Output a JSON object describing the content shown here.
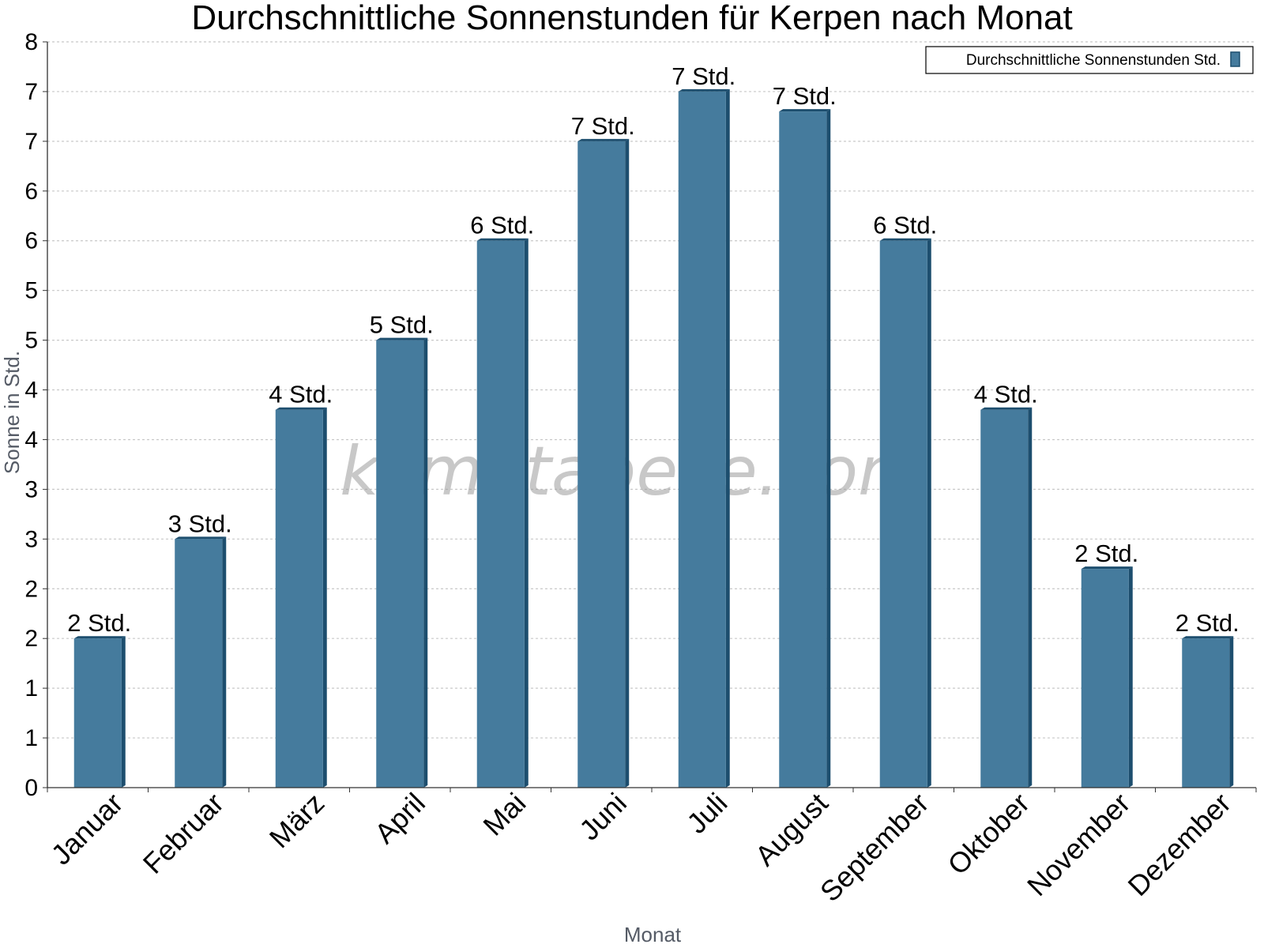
{
  "chart_data": {
    "type": "bar",
    "title": "Durchschnittliche Sonnenstunden für Kerpen nach Monat",
    "xlabel": "Monat",
    "ylabel": "Sonne in Std.",
    "categories": [
      "Januar",
      "Februar",
      "März",
      "April",
      "Mai",
      "Juni",
      "Juli",
      "August",
      "September",
      "Oktober",
      "November",
      "Dezember"
    ],
    "series": [
      {
        "name": "Durchschnittliche Sonnenstunden Std.",
        "values": [
          1.5,
          2.5,
          3.8,
          4.5,
          5.5,
          6.5,
          7.0,
          6.8,
          5.5,
          3.8,
          2.2,
          1.5
        ],
        "labels": [
          "2 Std.",
          "3 Std.",
          "4 Std.",
          "5 Std.",
          "6 Std.",
          "7 Std.",
          "7 Std.",
          "7 Std.",
          "6 Std.",
          "4 Std.",
          "2 Std.",
          "2 Std."
        ]
      }
    ],
    "ylim": [
      0,
      7.5
    ],
    "yticks": [
      0,
      0.5,
      1,
      1.5,
      2,
      2.5,
      3,
      3.5,
      4,
      4.5,
      5,
      5.5,
      6,
      6.5,
      7,
      7.5
    ],
    "ytick_labels": [
      "0",
      "1",
      "1",
      "2",
      "2",
      "3",
      "3",
      "4",
      "4",
      "5",
      "5",
      "6",
      "6",
      "7",
      "7",
      "8"
    ],
    "grid": true,
    "legend_position": "top-right",
    "bar_color": "#457b9d",
    "bar_side_color": "#1d4e6e",
    "grid_color": "#c8c8c8",
    "watermark": "klimatabelle.com"
  }
}
